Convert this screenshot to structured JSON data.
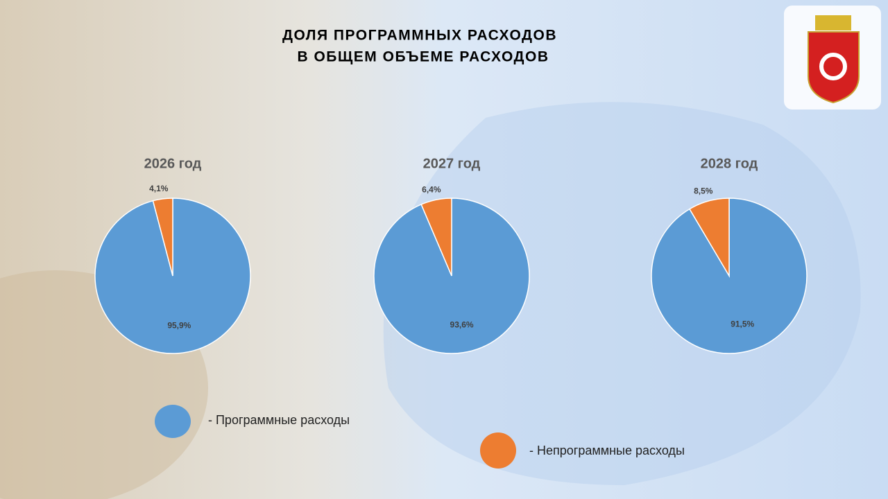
{
  "title": [
    "ДОЛЯ ПРОГРАММНЫХ РАСХОДОВ",
    "В ОБЩЕМ ОБЪЕМЕ РАСХОДОВ"
  ],
  "legend": [
    {
      "label": "- Программные расходы",
      "color": "#5b9bd5"
    },
    {
      "label": "- Непрограммные расходы",
      "color": "#ed7d31"
    }
  ],
  "chart_data": [
    {
      "type": "pie",
      "title": "2026 год",
      "values": [
        95.9,
        4.1
      ],
      "value_labels": [
        "95,9%",
        "4,1%"
      ],
      "colors": [
        "#5b9bd5",
        "#ed7d31"
      ]
    },
    {
      "type": "pie",
      "title": "2027 год",
      "values": [
        93.6,
        6.4
      ],
      "value_labels": [
        "93,6%",
        "6,4%"
      ],
      "colors": [
        "#5b9bd5",
        "#ed7d31"
      ]
    },
    {
      "type": "pie",
      "title": "2028 год",
      "values": [
        91.5,
        8.5
      ],
      "value_labels": [
        "91,5%",
        "8,5%"
      ],
      "colors": [
        "#5b9bd5",
        "#ed7d31"
      ]
    }
  ]
}
